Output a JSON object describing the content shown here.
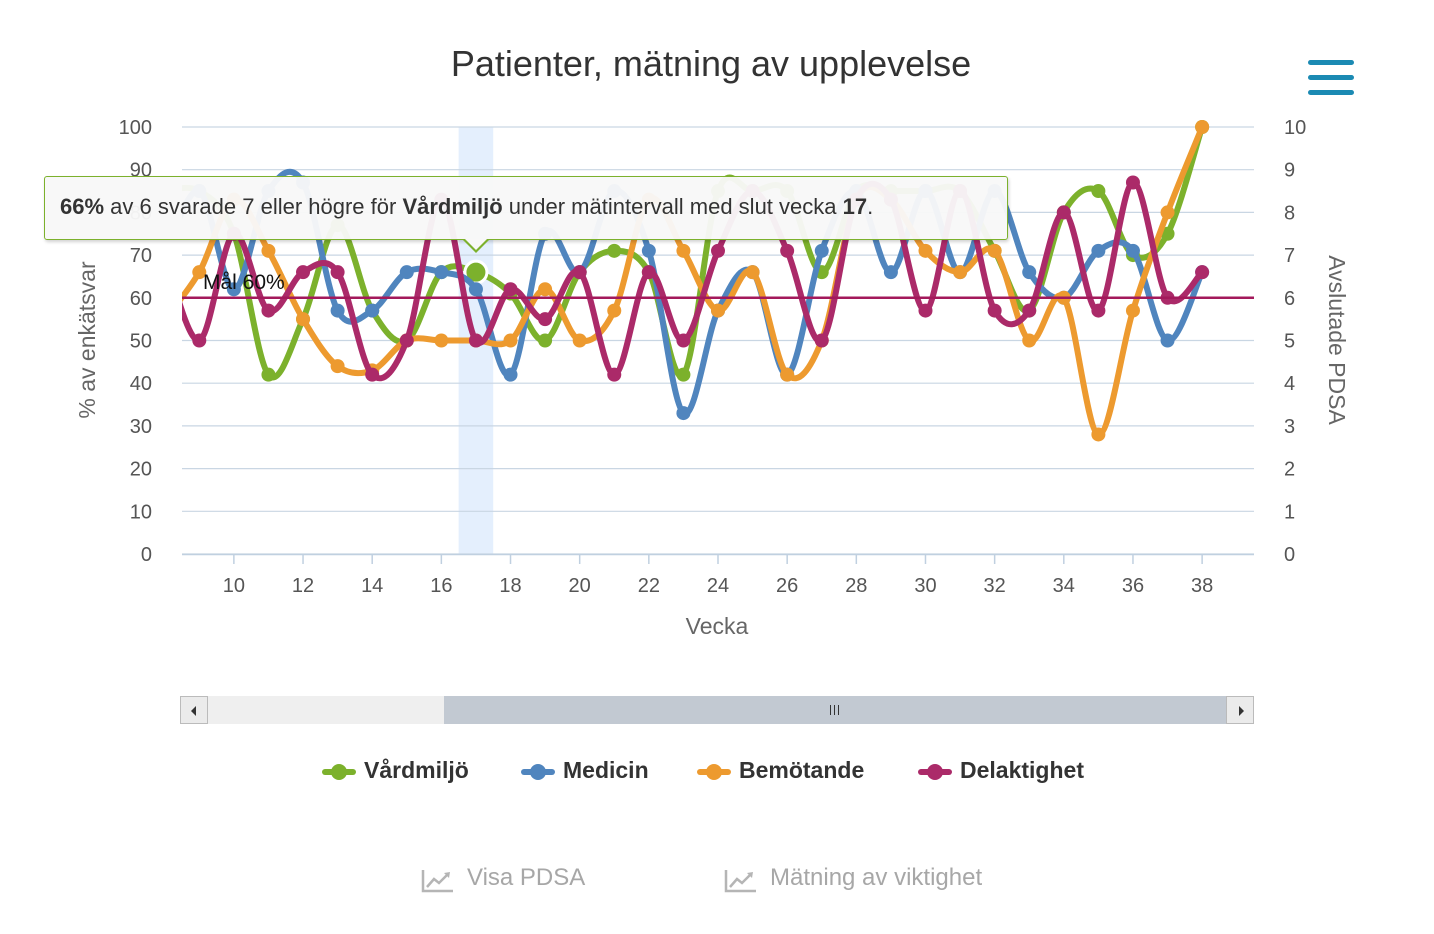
{
  "chart_data": {
    "type": "line",
    "title": "Patienter, mätning av upplevelse",
    "xlabel": "Vecka",
    "ylabel": "% av enkätsvar",
    "y2label": "Avslutade PDSA",
    "xlim": [
      8.5,
      39.5
    ],
    "ylim": [
      0,
      100
    ],
    "y2lim": [
      0,
      10
    ],
    "xticks": [
      10,
      12,
      14,
      16,
      18,
      20,
      22,
      24,
      26,
      28,
      30,
      32,
      34,
      36,
      38
    ],
    "yticks": [
      0,
      10,
      20,
      30,
      40,
      50,
      60,
      70,
      80,
      90,
      100
    ],
    "y2ticks": [
      0,
      1,
      2,
      3,
      4,
      5,
      6,
      7,
      8,
      9,
      10
    ],
    "grid": true,
    "legend_position": "bottom",
    "highlight_week": 17,
    "target": {
      "value": 60,
      "label": "Mål 60%",
      "color": "#a3195b"
    },
    "series": [
      {
        "name": "Vårdmiljö",
        "color": "#7cb12c",
        "x": [
          8,
          9,
          10,
          11,
          12,
          13,
          14,
          15,
          16,
          17,
          18,
          19,
          20,
          21,
          22,
          23,
          24,
          25,
          26,
          27,
          28,
          29,
          30,
          31,
          32,
          33,
          34,
          35,
          36,
          37,
          38
        ],
        "values": [
          85,
          85,
          75,
          42,
          55,
          77,
          57,
          50,
          66,
          66,
          61,
          50,
          66,
          71,
          66,
          42,
          85,
          85,
          85,
          66,
          85,
          85,
          85,
          85,
          71,
          57,
          80,
          85,
          70,
          75,
          100
        ]
      },
      {
        "name": "Medicin",
        "color": "#5085be",
        "x": [
          8,
          9,
          10,
          11,
          12,
          13,
          14,
          15,
          16,
          17,
          18,
          19,
          20,
          21,
          22,
          23,
          24,
          25,
          26,
          27,
          28,
          29,
          30,
          31,
          32,
          33,
          34,
          35,
          36,
          37,
          38
        ],
        "values": [
          70,
          85,
          62,
          85,
          87,
          57,
          57,
          66,
          66,
          62,
          42,
          75,
          66,
          85,
          71,
          33,
          57,
          66,
          42,
          71,
          85,
          66,
          85,
          66,
          85,
          66,
          60,
          71,
          71,
          50,
          66
        ]
      },
      {
        "name": "Bemötande",
        "color": "#ed9a2f",
        "x": [
          8,
          9,
          10,
          11,
          12,
          13,
          14,
          15,
          16,
          17,
          18,
          19,
          20,
          21,
          22,
          23,
          24,
          25,
          26,
          27,
          28,
          29,
          30,
          31,
          32,
          33,
          34,
          35,
          36,
          37,
          38
        ],
        "values": [
          55,
          66,
          83,
          71,
          55,
          44,
          43,
          50,
          50,
          50,
          50,
          62,
          50,
          57,
          83,
          71,
          57,
          66,
          42,
          50,
          83,
          83,
          71,
          66,
          71,
          50,
          60,
          28,
          57,
          80,
          100
        ]
      },
      {
        "name": "Delaktighet",
        "color": "#ab2a69",
        "x": [
          8,
          9,
          10,
          11,
          12,
          13,
          14,
          15,
          16,
          17,
          18,
          19,
          20,
          21,
          22,
          23,
          24,
          25,
          26,
          27,
          28,
          29,
          30,
          31,
          32,
          33,
          34,
          35,
          36,
          37,
          38
        ],
        "values": [
          70,
          50,
          75,
          57,
          66,
          66,
          42,
          50,
          83,
          50,
          62,
          55,
          66,
          42,
          66,
          50,
          71,
          85,
          71,
          50,
          83,
          83,
          57,
          85,
          57,
          57,
          80,
          57,
          87,
          60,
          66
        ]
      }
    ]
  },
  "tooltip": {
    "value": "66%",
    "text1": " av 6 svarade 7 eller högre för ",
    "series": "Vårdmiljö",
    "text2": " under mätintervall med slut vecka ",
    "week": "17",
    "text3": "."
  },
  "links": {
    "pdsa": "Visa PDSA",
    "importance": "Mätning av viktighet"
  }
}
